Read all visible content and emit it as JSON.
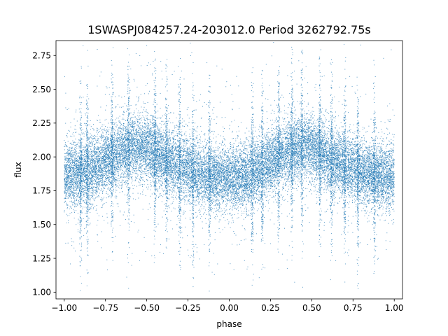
{
  "chart_data": {
    "type": "scatter",
    "title": "1SWASPJ084257.24-203012.0 Period 3262792.75s",
    "xlabel": "phase",
    "ylabel": "flux",
    "xlim": [
      -1.05,
      1.05
    ],
    "ylim": [
      0.95,
      2.86
    ],
    "xticks": [
      -1.0,
      -0.75,
      -0.5,
      -0.25,
      0.0,
      0.25,
      0.5,
      0.75,
      1.0
    ],
    "xtick_labels": [
      "−1.00",
      "−0.75",
      "−0.50",
      "−0.25",
      "0.00",
      "0.25",
      "0.50",
      "0.75",
      "1.00"
    ],
    "yticks": [
      1.0,
      1.25,
      1.5,
      1.75,
      2.0,
      2.25,
      2.5,
      2.75
    ],
    "ytick_labels": [
      "1.00",
      "1.25",
      "1.50",
      "1.75",
      "2.00",
      "2.25",
      "2.50",
      "2.75"
    ],
    "grid": false,
    "series": [
      {
        "color": "#1f77b4",
        "marker_size": 0.6,
        "point_count_approx": 26000,
        "trend_phase": [
          -1.0,
          -0.9,
          -0.8,
          -0.75,
          -0.7,
          -0.6,
          -0.55,
          -0.5,
          -0.45,
          -0.4,
          -0.3,
          -0.25,
          -0.2,
          -0.1,
          0.0,
          0.1,
          0.2,
          0.25,
          0.3,
          0.4,
          0.45,
          0.5,
          0.55,
          0.6,
          0.7,
          0.75,
          0.8,
          0.9,
          1.0
        ],
        "trend_flux": [
          1.86,
          1.87,
          1.93,
          1.97,
          2.0,
          2.06,
          2.08,
          2.07,
          2.03,
          1.98,
          1.93,
          1.91,
          1.88,
          1.85,
          1.84,
          1.86,
          1.92,
          1.96,
          2.0,
          2.06,
          2.08,
          2.07,
          2.03,
          1.98,
          1.94,
          1.92,
          1.89,
          1.86,
          1.86
        ],
        "scatter_sigma": 0.14,
        "streak_phases": [
          -0.9,
          -0.86,
          -0.71,
          -0.61,
          -0.45,
          -0.38,
          -0.3,
          -0.22,
          -0.12,
          0.14,
          0.2,
          0.3,
          0.38,
          0.44,
          0.55,
          0.62,
          0.7,
          0.78,
          0.88
        ],
        "flux_range": [
          1.0,
          2.85
        ]
      }
    ]
  }
}
